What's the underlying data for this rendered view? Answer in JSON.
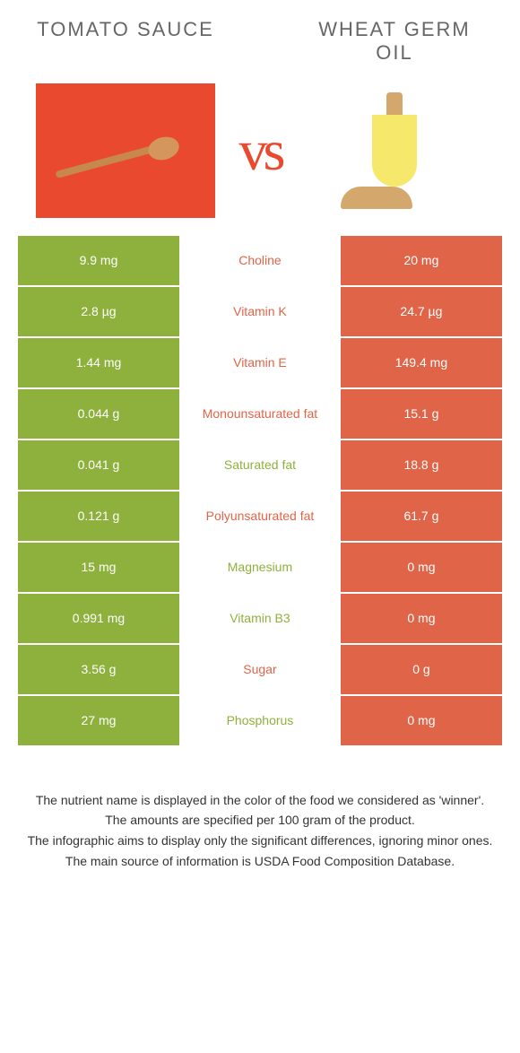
{
  "header": {
    "left_title": "Tomato Sauce",
    "right_title": "Wheat Germ Oil",
    "vs_text": "vs"
  },
  "colors": {
    "green": "#8db13c",
    "orange": "#e06548",
    "tomato": "#e8492f"
  },
  "rows": [
    {
      "left": "9.9 mg",
      "label": "Choline",
      "right": "20 mg",
      "winner": "right"
    },
    {
      "left": "2.8 µg",
      "label": "Vitamin K",
      "right": "24.7 µg",
      "winner": "right"
    },
    {
      "left": "1.44 mg",
      "label": "Vitamin E",
      "right": "149.4 mg",
      "winner": "right"
    },
    {
      "left": "0.044 g",
      "label": "Monounsaturated fat",
      "right": "15.1 g",
      "winner": "right"
    },
    {
      "left": "0.041 g",
      "label": "Saturated fat",
      "right": "18.8 g",
      "winner": "left"
    },
    {
      "left": "0.121 g",
      "label": "Polyunsaturated fat",
      "right": "61.7 g",
      "winner": "right"
    },
    {
      "left": "15 mg",
      "label": "Magnesium",
      "right": "0 mg",
      "winner": "left"
    },
    {
      "left": "0.991 mg",
      "label": "Vitamin B3",
      "right": "0 mg",
      "winner": "left"
    },
    {
      "left": "3.56 g",
      "label": "Sugar",
      "right": "0 g",
      "winner": "right"
    },
    {
      "left": "27 mg",
      "label": "Phosphorus",
      "right": "0 mg",
      "winner": "left"
    }
  ],
  "footer": {
    "line1": "The nutrient name is displayed in the color of the food we considered as 'winner'.",
    "line2": "The amounts are specified per 100 gram of the product.",
    "line3": "The infographic aims to display only the significant differences, ignoring minor ones.",
    "line4": "The main source of information is USDA Food Composition Database."
  }
}
